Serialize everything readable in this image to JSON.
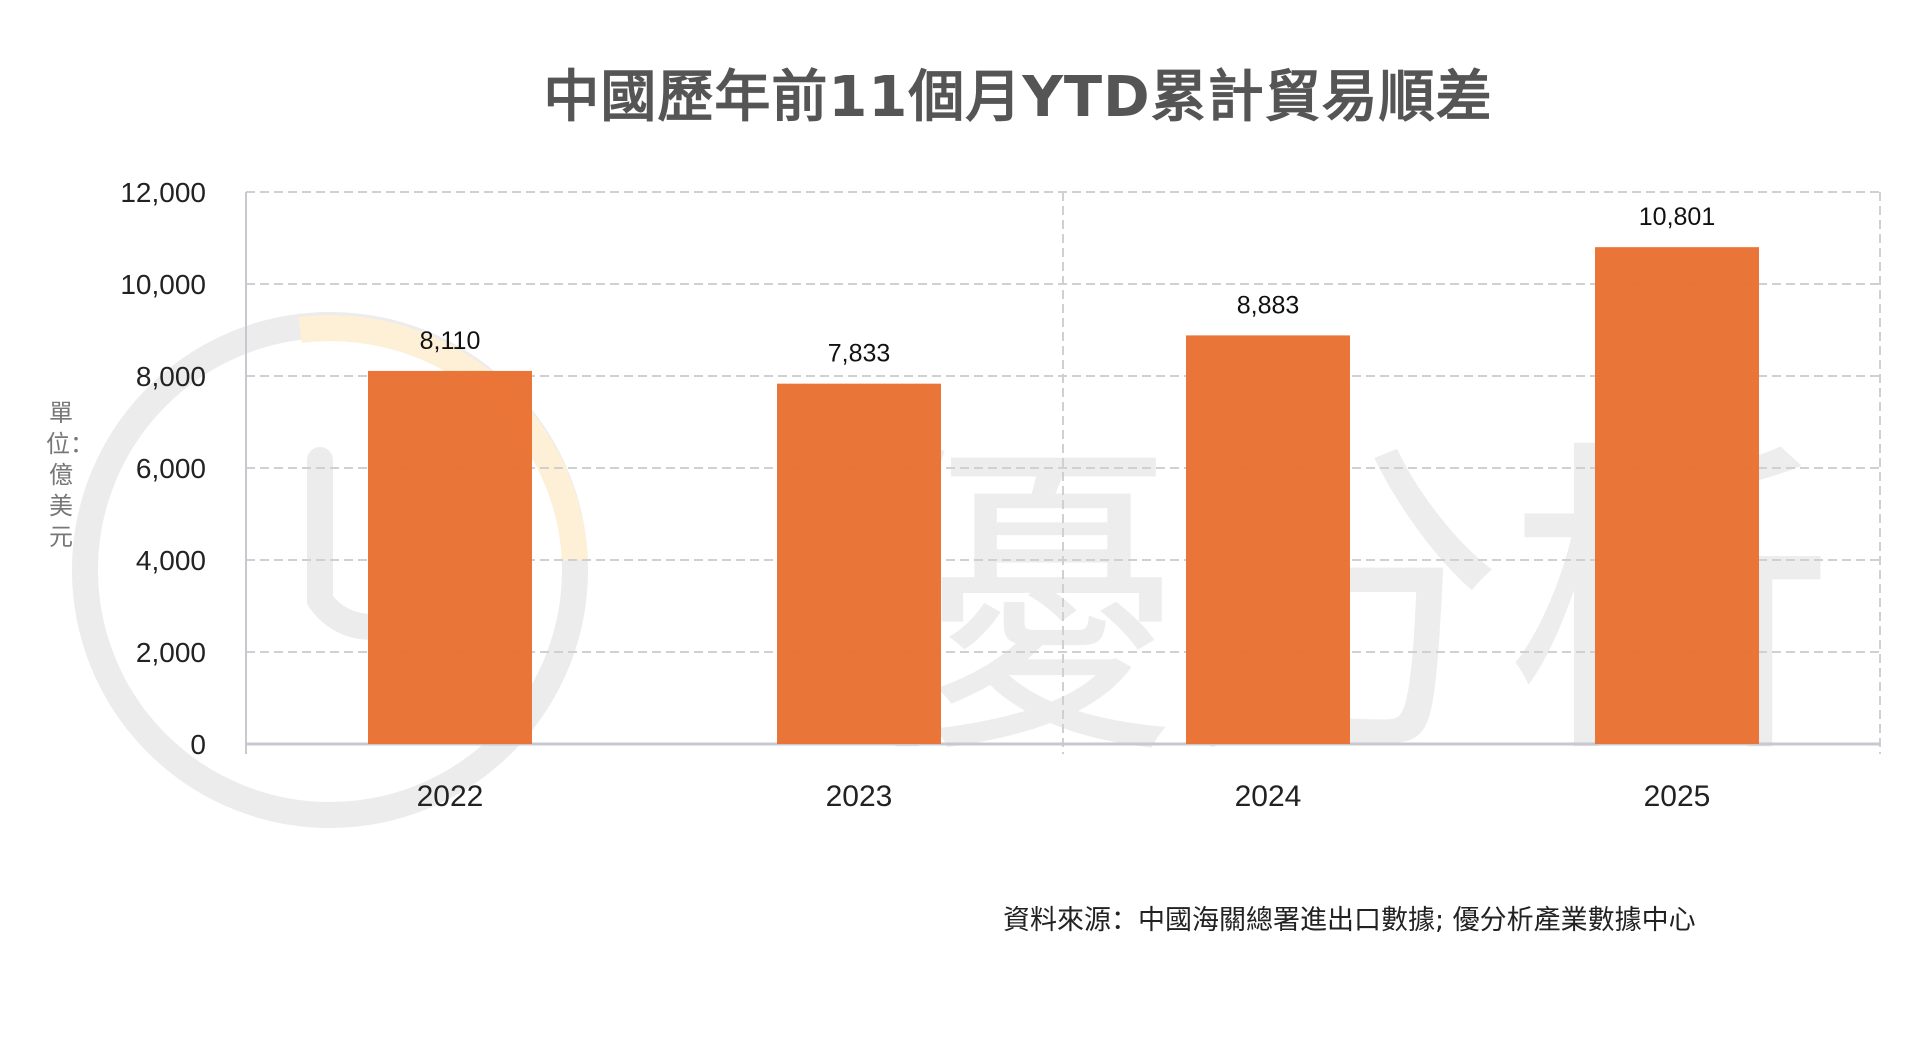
{
  "chart_data": {
    "type": "bar",
    "title": "中國歷年前11個月YTD累計貿易順差",
    "ylabel": "單位：億美元",
    "categories": [
      "2022",
      "2023",
      "2024",
      "2025"
    ],
    "values": [
      8110,
      7833,
      8883,
      10801
    ],
    "data_labels": [
      "8,110",
      "7,833",
      "8,883",
      "10,801"
    ],
    "yticks": [
      "0",
      "2,000",
      "4,000",
      "6,000",
      "8,000",
      "10,000",
      "12,000"
    ],
    "ylim": [
      0,
      12000
    ],
    "grid": true,
    "bar_color": "#E97132",
    "source": "資料來源：中國海關總署進出口數據; 優分析產業數據中心"
  },
  "watermark": {
    "text": "優分析",
    "logo_colors": [
      "#e6e6e6",
      "#fde9c4"
    ]
  }
}
